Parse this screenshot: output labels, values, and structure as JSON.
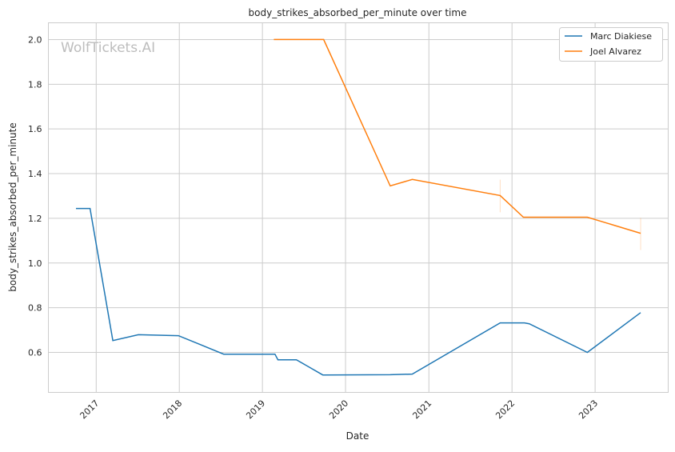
{
  "watermark": "WolfTickets.AI",
  "chart_data": {
    "type": "line",
    "title": "body_strikes_absorbed_per_minute over time",
    "xlabel": "Date",
    "ylabel": "body_strikes_absorbed_per_minute",
    "xlim": [
      "2016-06-05",
      "2023-11-18"
    ],
    "ylim": [
      0.421,
      2.075
    ],
    "x_ticks": [
      "2017",
      "2018",
      "2019",
      "2020",
      "2021",
      "2022",
      "2023"
    ],
    "y_ticks": [
      "0.6",
      "0.8",
      "1.0",
      "1.2",
      "1.4",
      "1.6",
      "1.8",
      "2.0"
    ],
    "grid": true,
    "legend": "top-right",
    "series": [
      {
        "name": "Marc Diakiese",
        "color": "#1f77b4",
        "x": [
          "2016-10-04",
          "2016-12-05",
          "2017-03-15",
          "2017-07-05",
          "2017-12-28",
          "2018-07-15",
          "2019-02-25",
          "2019-03-10",
          "2019-05-30",
          "2019-09-23",
          "2020-07-15",
          "2020-10-20",
          "2021-11-10",
          "2022-02-25",
          "2022-03-18",
          "2022-11-28",
          "2023-07-20"
        ],
        "y": [
          1.244,
          1.244,
          0.653,
          0.679,
          0.675,
          0.592,
          0.592,
          0.567,
          0.567,
          0.499,
          0.5,
          0.503,
          0.732,
          0.732,
          0.728,
          0.6,
          0.778
        ]
      },
      {
        "name": "Joel Alvarez",
        "color": "#ff7f0e",
        "x": [
          "2019-02-20",
          "2019-09-27",
          "2020-07-15",
          "2020-10-20",
          "2021-11-10",
          "2022-02-20",
          "2022-11-28",
          "2023-07-20"
        ],
        "y": [
          2.0,
          2.0,
          1.345,
          1.374,
          1.302,
          1.205,
          1.205,
          1.133
        ],
        "ci": [
          null,
          null,
          null,
          null,
          [
            1.227,
            1.373
          ],
          null,
          null,
          [
            1.058,
            1.202
          ]
        ]
      }
    ]
  }
}
